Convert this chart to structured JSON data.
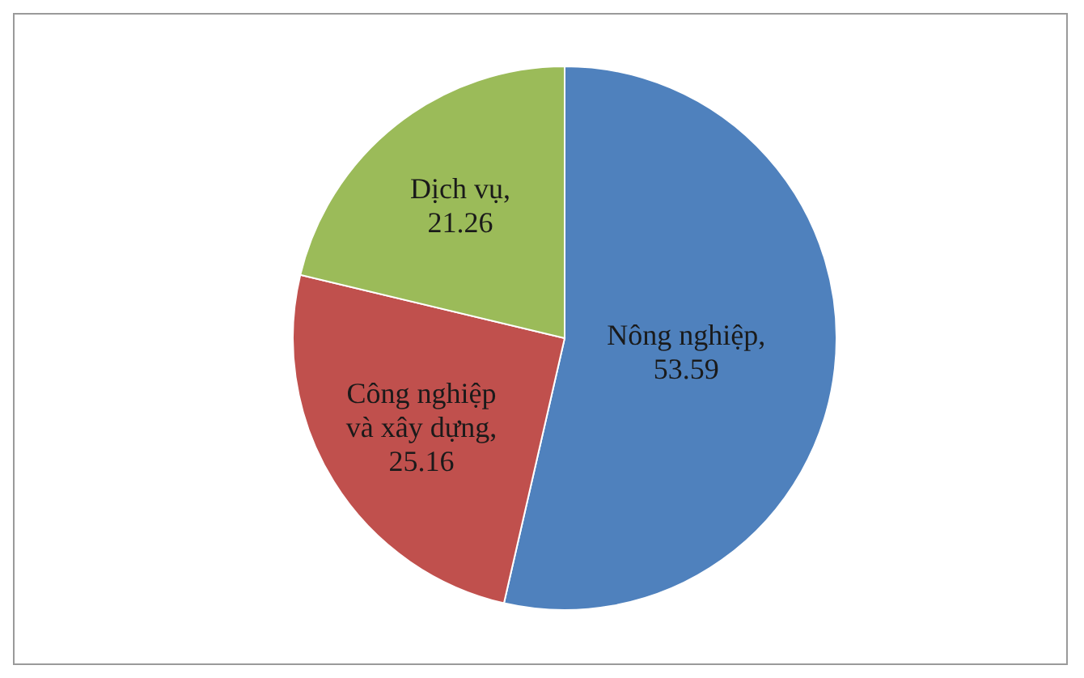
{
  "chart_data": {
    "type": "pie",
    "categories": [
      null,
      null,
      null
    ],
    "values": [
      53.59,
      25.16,
      21.26
    ],
    "value_labels": [
      "Nông nghiệp, 53.59",
      "Công nghiệp và xây dựng, 25.16",
      "Dịch vụ, 21.26"
    ],
    "colors": [
      "#4f81bd",
      "#c0504d",
      "#9bbb59"
    ]
  }
}
